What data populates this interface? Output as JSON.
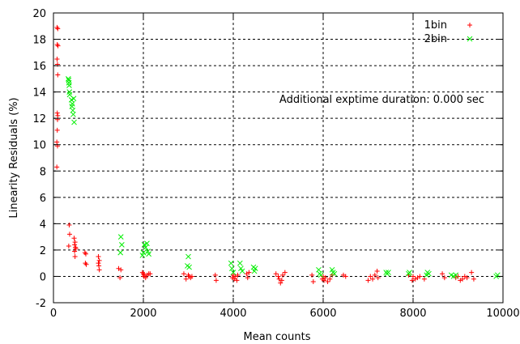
{
  "chart_data": {
    "type": "scatter",
    "title": "",
    "xlabel": "Mean counts",
    "ylabel": "Linearity Residuals (%)",
    "annotation": "Additional exptime duration: 0.000 sec",
    "xlim": [
      0,
      10000
    ],
    "ylim": [
      -2,
      20
    ],
    "xticks": [
      "0",
      "2000",
      "4000",
      "6000",
      "8000",
      "10000"
    ],
    "yticks": [
      "-2",
      "0",
      "2",
      "4",
      "6",
      "8",
      "10",
      "12",
      "14",
      "16",
      "18",
      "20"
    ],
    "xtick_values": [
      0,
      2000,
      4000,
      6000,
      8000,
      10000
    ],
    "ytick_values": [
      -2,
      0,
      2,
      4,
      6,
      8,
      10,
      12,
      14,
      16,
      18,
      20
    ],
    "grid": true,
    "legend_position": "top-right",
    "series": [
      {
        "name": "1bin",
        "marker": "+",
        "color": "#ff0000",
        "points": [
          [
            80,
            18.9
          ],
          [
            95,
            18.8
          ],
          [
            85,
            17.6
          ],
          [
            100,
            17.5
          ],
          [
            80,
            16.5
          ],
          [
            90,
            16.1
          ],
          [
            95,
            15.3
          ],
          [
            85,
            12.4
          ],
          [
            95,
            12.2
          ],
          [
            90,
            11.9
          ],
          [
            85,
            11.1
          ],
          [
            75,
            10.2
          ],
          [
            90,
            9.9
          ],
          [
            75,
            8.3
          ],
          [
            350,
            3.9
          ],
          [
            360,
            3.2
          ],
          [
            340,
            2.3
          ],
          [
            460,
            2.9
          ],
          [
            480,
            2.6
          ],
          [
            470,
            2.4
          ],
          [
            490,
            2.2
          ],
          [
            500,
            2.1
          ],
          [
            470,
            1.9
          ],
          [
            480,
            1.5
          ],
          [
            700,
            1.8
          ],
          [
            720,
            1.7
          ],
          [
            710,
            1.0
          ],
          [
            730,
            0.9
          ],
          [
            1000,
            1.5
          ],
          [
            1020,
            1.2
          ],
          [
            1000,
            1.0
          ],
          [
            1010,
            0.8
          ],
          [
            1020,
            0.5
          ],
          [
            1450,
            0.6
          ],
          [
            1500,
            0.5
          ],
          [
            1480,
            -0.1
          ],
          [
            1980,
            0.3
          ],
          [
            2000,
            0.2
          ],
          [
            2010,
            0.0
          ],
          [
            2020,
            0.1
          ],
          [
            2050,
            -0.1
          ],
          [
            2080,
            0.1
          ],
          [
            2120,
            0.2
          ],
          [
            2150,
            0.2
          ],
          [
            2900,
            0.2
          ],
          [
            2950,
            -0.2
          ],
          [
            3000,
            0.1
          ],
          [
            3020,
            0.0
          ],
          [
            3050,
            -0.1
          ],
          [
            3080,
            0.0
          ],
          [
            3600,
            0.1
          ],
          [
            3620,
            -0.3
          ],
          [
            3980,
            -0.1
          ],
          [
            4000,
            0.1
          ],
          [
            4020,
            -0.2
          ],
          [
            4050,
            0.0
          ],
          [
            4080,
            -0.3
          ],
          [
            4100,
            0.1
          ],
          [
            4300,
            0.2
          ],
          [
            4320,
            -0.1
          ],
          [
            4350,
            0.3
          ],
          [
            4950,
            0.2
          ],
          [
            5000,
            0.0
          ],
          [
            5020,
            -0.2
          ],
          [
            5050,
            -0.5
          ],
          [
            5080,
            -0.3
          ],
          [
            5100,
            0.1
          ],
          [
            5150,
            0.3
          ],
          [
            5750,
            0.1
          ],
          [
            5780,
            -0.4
          ],
          [
            5980,
            -0.2
          ],
          [
            6000,
            0.0
          ],
          [
            6020,
            -0.3
          ],
          [
            6050,
            -0.1
          ],
          [
            6100,
            -0.4
          ],
          [
            6150,
            -0.2
          ],
          [
            6200,
            0.1
          ],
          [
            6450,
            0.1
          ],
          [
            6500,
            0.0
          ],
          [
            7000,
            -0.3
          ],
          [
            7050,
            0.0
          ],
          [
            7100,
            -0.2
          ],
          [
            7150,
            0.1
          ],
          [
            7200,
            0.4
          ],
          [
            7220,
            -0.1
          ],
          [
            7900,
            0.1
          ],
          [
            7980,
            -0.3
          ],
          [
            8000,
            0.0
          ],
          [
            8050,
            -0.2
          ],
          [
            8100,
            -0.1
          ],
          [
            8150,
            0.0
          ],
          [
            8250,
            -0.2
          ],
          [
            8650,
            0.2
          ],
          [
            8700,
            -0.1
          ],
          [
            8950,
            -0.1
          ],
          [
            9000,
            0.0
          ],
          [
            9050,
            -0.3
          ],
          [
            9100,
            -0.2
          ],
          [
            9150,
            0.0
          ],
          [
            9200,
            -0.1
          ],
          [
            9300,
            0.3
          ],
          [
            9350,
            -0.2
          ]
        ]
      },
      {
        "name": "2bin",
        "marker": "x",
        "color": "#00ee00",
        "points": [
          [
            330,
            15.0
          ],
          [
            340,
            14.9
          ],
          [
            345,
            14.7
          ],
          [
            350,
            14.5
          ],
          [
            355,
            14.0
          ],
          [
            360,
            13.8
          ],
          [
            400,
            13.4
          ],
          [
            420,
            13.1
          ],
          [
            410,
            12.9
          ],
          [
            430,
            12.6
          ],
          [
            450,
            13.5
          ],
          [
            440,
            12.3
          ],
          [
            460,
            11.7
          ],
          [
            1500,
            3.0
          ],
          [
            1520,
            2.4
          ],
          [
            1490,
            1.8
          ],
          [
            1980,
            1.6
          ],
          [
            2000,
            1.8
          ],
          [
            2020,
            2.4
          ],
          [
            2050,
            2.2
          ],
          [
            2080,
            2.5
          ],
          [
            2100,
            1.9
          ],
          [
            2120,
            1.7
          ],
          [
            2980,
            0.8
          ],
          [
            3000,
            1.5
          ],
          [
            3020,
            0.7
          ],
          [
            3950,
            1.0
          ],
          [
            3970,
            0.6
          ],
          [
            4000,
            0.3
          ],
          [
            4150,
            1.0
          ],
          [
            4170,
            0.6
          ],
          [
            4200,
            0.4
          ],
          [
            4450,
            0.7
          ],
          [
            4470,
            0.4
          ],
          [
            4490,
            0.6
          ],
          [
            5900,
            0.5
          ],
          [
            5920,
            0.2
          ],
          [
            5950,
            0.1
          ],
          [
            6200,
            0.5
          ],
          [
            6220,
            0.3
          ],
          [
            6250,
            0.2
          ],
          [
            7400,
            0.3
          ],
          [
            7420,
            0.2
          ],
          [
            7450,
            0.3
          ],
          [
            7900,
            0.2
          ],
          [
            7920,
            0.3
          ],
          [
            8300,
            0.1
          ],
          [
            8320,
            0.3
          ],
          [
            8350,
            0.2
          ],
          [
            8850,
            0.1
          ],
          [
            8900,
            0.0
          ],
          [
            8950,
            0.1
          ],
          [
            9850,
            0.0
          ],
          [
            9880,
            0.1
          ]
        ]
      }
    ]
  }
}
